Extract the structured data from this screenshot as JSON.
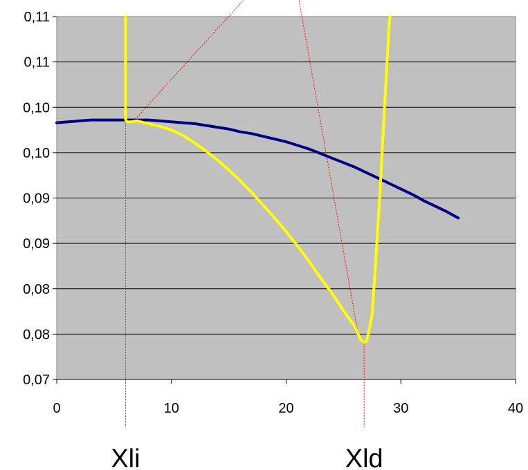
{
  "chart_data": {
    "type": "line",
    "title": "",
    "xlabel": "",
    "ylabel": "",
    "xlim": [
      0,
      40
    ],
    "ylim": [
      0.07,
      0.11
    ],
    "x_ticks": [
      0,
      10,
      20,
      30,
      40
    ],
    "x_tick_labels": [
      "0",
      "10",
      "20",
      "30",
      "40"
    ],
    "y_ticks": [
      0.07,
      0.075,
      0.08,
      0.085,
      0.09,
      0.095,
      0.1,
      0.105,
      0.11
    ],
    "y_tick_labels": [
      "0,07",
      "0,08",
      "0,08",
      "0,09",
      "0,09",
      "0,10",
      "0,10",
      "0,11",
      "0,11"
    ],
    "plot_background": "#c0c0c0",
    "grid": "horizontal",
    "legend": "none",
    "series": [
      {
        "color": "#000080",
        "x": [
          0,
          1,
          2,
          3,
          4,
          5,
          6,
          7,
          8,
          9,
          10,
          11,
          12,
          13,
          14,
          15,
          16,
          17,
          18,
          19,
          20,
          21,
          22,
          23,
          24,
          25,
          26,
          27,
          28,
          29,
          30,
          31,
          32,
          33,
          34,
          35
        ],
        "y": [
          0.0983,
          0.0984,
          0.0985,
          0.0986,
          0.0986,
          0.0986,
          0.0986,
          0.0986,
          0.0986,
          0.0985,
          0.0984,
          0.0983,
          0.0982,
          0.098,
          0.0978,
          0.0976,
          0.0973,
          0.0971,
          0.0968,
          0.0965,
          0.0962,
          0.0958,
          0.0954,
          0.0949,
          0.0944,
          0.0939,
          0.0934,
          0.0928,
          0.0922,
          0.0916,
          0.091,
          0.0904,
          0.0897,
          0.0891,
          0.0885,
          0.0878
        ]
      },
      {
        "color": "#ffff00",
        "x": [
          6.0,
          6.0,
          6.1,
          6.5,
          7.0,
          8.0,
          9.0,
          10.0,
          11.0,
          12.0,
          13.0,
          14.0,
          15.0,
          16.0,
          17.0,
          18.0,
          19.0,
          20.0,
          21.0,
          22.0,
          23.0,
          24.0,
          25.0,
          26.0,
          26.5,
          26.8,
          27.0,
          27.2,
          27.5,
          27.8,
          28.2,
          28.6,
          29.0,
          29.05
        ],
        "y": [
          0.11,
          0.0987,
          0.0984,
          0.0984,
          0.0985,
          0.0982,
          0.0979,
          0.0975,
          0.0969,
          0.0961,
          0.0952,
          0.0942,
          0.0931,
          0.0919,
          0.0906,
          0.0892,
          0.0878,
          0.0863,
          0.0847,
          0.083,
          0.0812,
          0.0795,
          0.0776,
          0.0758,
          0.0744,
          0.0741,
          0.0742,
          0.0752,
          0.0772,
          0.0828,
          0.091,
          0.1005,
          0.1095,
          0.11
        ]
      }
    ],
    "annotations": [
      {
        "text": "Xli",
        "x": 6.0
      },
      {
        "text": "Xld",
        "x": 26.8
      }
    ]
  }
}
